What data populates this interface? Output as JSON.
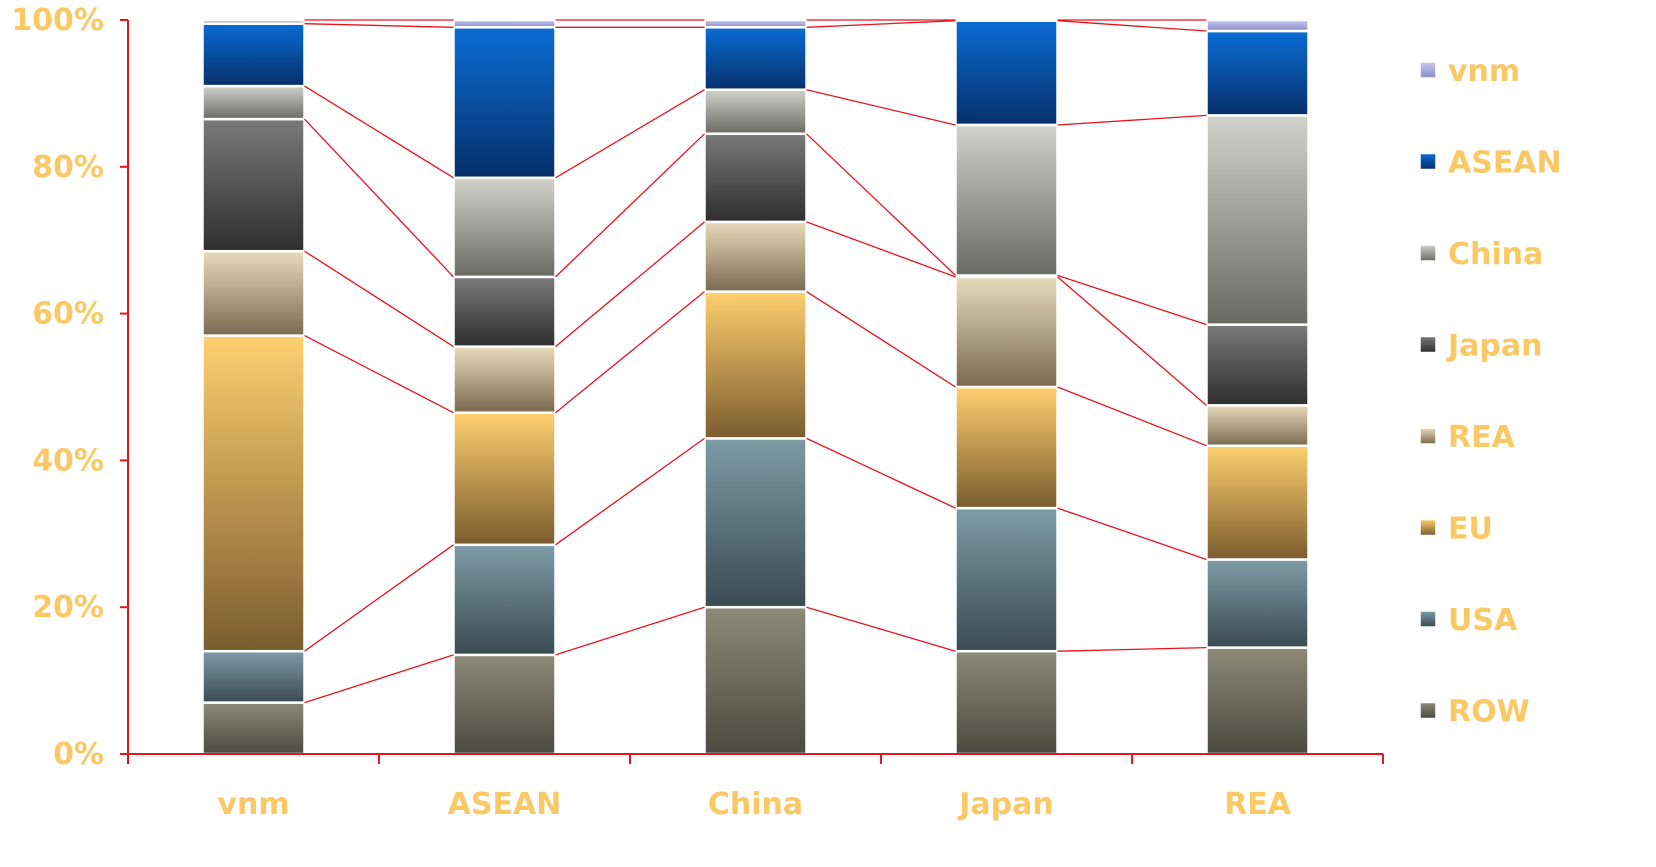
{
  "chart_data": {
    "type": "bar",
    "stacked": true,
    "percent": true,
    "title": "",
    "xlabel": "",
    "ylabel": "",
    "categories": [
      "vnm",
      "ASEAN",
      "China",
      "Japan",
      "REA"
    ],
    "ylim": [
      0,
      100
    ],
    "yticks": [
      "0%",
      "20%",
      "40%",
      "60%",
      "80%",
      "100%"
    ],
    "connector_lines": true,
    "legend_position": "right",
    "series": [
      {
        "name": "ROW",
        "color_top": "#8C8A78",
        "color_bottom": "#4A4A40",
        "values": [
          7,
          13.5,
          20,
          14,
          14.5
        ]
      },
      {
        "name": "USA",
        "color_top": "#7E9CA6",
        "color_bottom": "#3A4A52",
        "values": [
          7,
          15,
          23,
          19.5,
          12
        ]
      },
      {
        "name": "EU",
        "color_top": "#FFD070",
        "color_bottom": "#7A5C2E",
        "values": [
          43,
          18,
          20,
          16.5,
          15.5
        ]
      },
      {
        "name": "REA",
        "color_top": "#E8DBBA",
        "color_bottom": "#7A6A50",
        "values": [
          11.5,
          9,
          9.5,
          15,
          5.5
        ]
      },
      {
        "name": "Japan",
        "color_top": "#7A7A7A",
        "color_bottom": "#2E2E2E",
        "values": [
          18,
          9.5,
          12,
          0.2,
          11
        ]
      },
      {
        "name": "China",
        "color_top": "#D2D2CC",
        "color_bottom": "#6A6A64",
        "values": [
          4.5,
          13.5,
          6,
          20.5,
          28.5
        ]
      },
      {
        "name": "ASEAN",
        "color_top": "#0A6CD4",
        "color_bottom": "#06306A",
        "values": [
          8.5,
          20.5,
          8.5,
          14.2,
          11.5
        ]
      },
      {
        "name": "vnm",
        "color_top": "#C8C8F0",
        "color_bottom": "#8C8CC8",
        "values": [
          0.5,
          1,
          1,
          0.1,
          1.5
        ]
      }
    ]
  }
}
